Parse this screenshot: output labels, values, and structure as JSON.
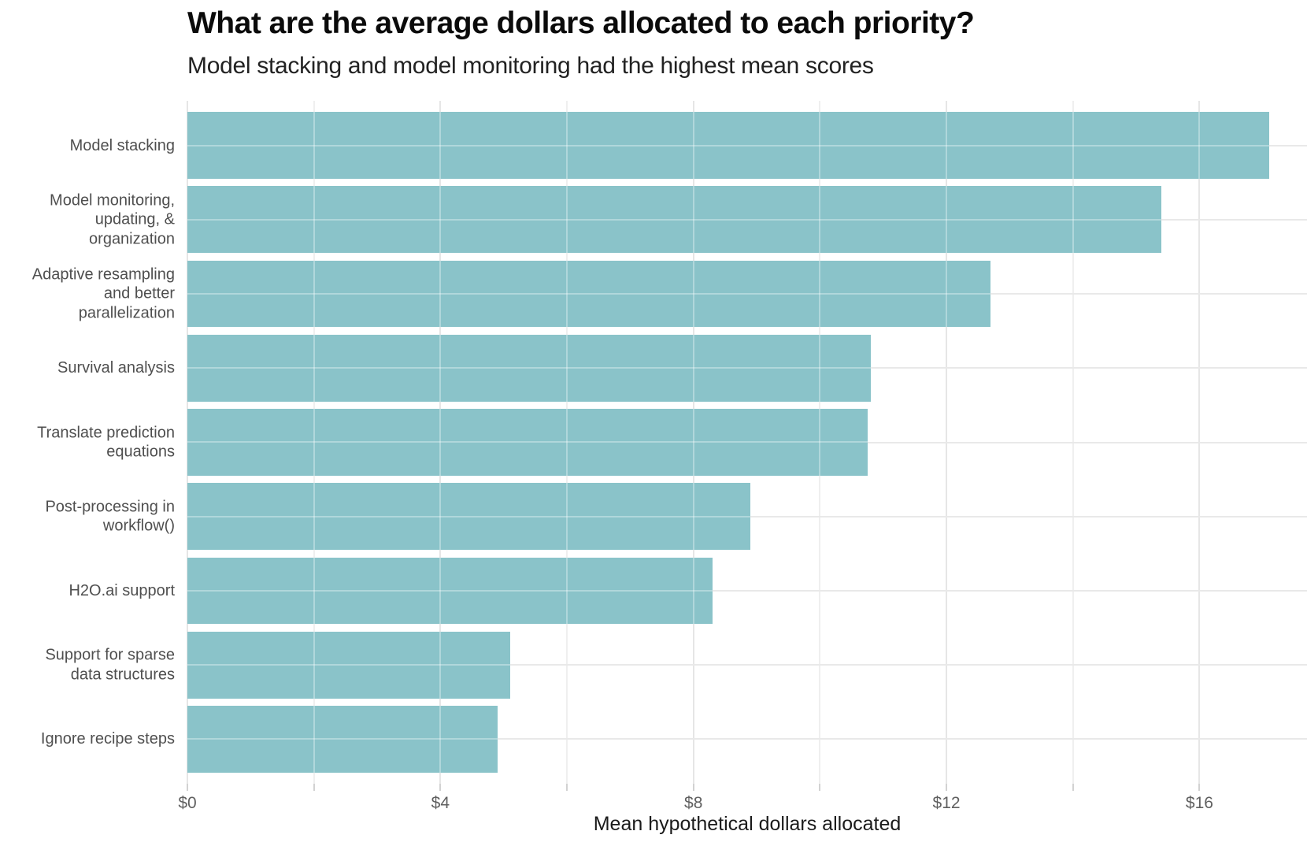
{
  "page": {
    "background": "#ffffff"
  },
  "chart_data": {
    "type": "bar",
    "orientation": "horizontal",
    "title": "What are the average dollars allocated to each priority?",
    "subtitle": "Model stacking and model monitoring had the highest mean scores",
    "xlabel": "Mean hypothetical dollars allocated",
    "ylabel": "",
    "categories": [
      "Model stacking",
      "Model monitoring,\nupdating, &\norganization",
      "Adaptive resampling\nand better\nparallelization",
      "Survival analysis",
      "Translate prediction\nequations",
      "Post-processing in\nworkflow()",
      "H2O.ai support",
      "Support for sparse\ndata structures",
      "Ignore recipe steps"
    ],
    "values": [
      17.1,
      15.4,
      12.7,
      10.8,
      10.75,
      8.9,
      8.3,
      5.1,
      4.9
    ],
    "xlim": [
      0,
      17.7
    ],
    "x_major_ticks": [
      0,
      4,
      8,
      12,
      16
    ],
    "x_minor_ticks": [
      2,
      6,
      10,
      14
    ],
    "x_tick_labels": [
      "$0",
      "$4",
      "$8",
      "$12",
      "$16"
    ],
    "bar_color": "#8AC3C9",
    "bar_width_fraction": 0.9,
    "grid": true,
    "legend": false,
    "colors": {
      "background": "#ffffff",
      "grid_major": "#e6e6e6",
      "grid_minor": "#efefef",
      "row_grid": "#e9e9e9",
      "axis_tick": "#d2d2d2",
      "title_text": "#0b0b0b",
      "subtitle_text": "#222222",
      "axis_title_text": "#1b1b1b",
      "tick_label_text": "#606060",
      "category_label_text": "#4f4f4f"
    }
  }
}
